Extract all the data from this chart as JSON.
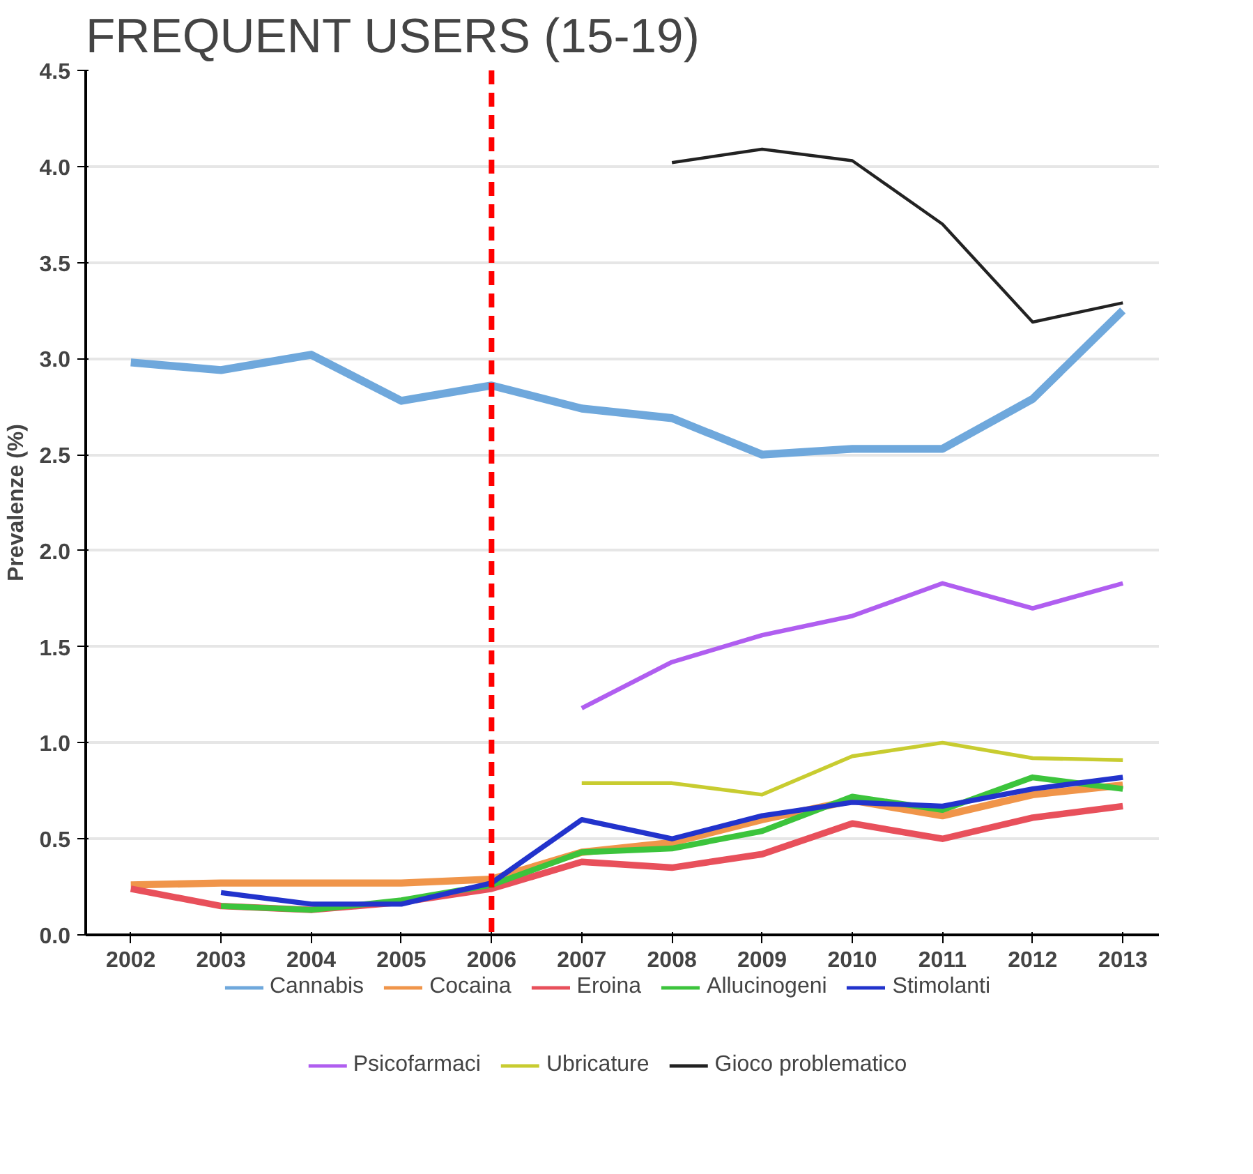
{
  "chart_data": {
    "type": "line",
    "title": "FREQUENT USERS (15-19)",
    "ylabel": "Prevalenze (%)",
    "x": [
      2002,
      2003,
      2004,
      2005,
      2006,
      2007,
      2008,
      2009,
      2010,
      2011,
      2012,
      2013
    ],
    "xlim": [
      2001.5,
      2013.4
    ],
    "xticks": [
      2002,
      2003,
      2004,
      2005,
      2006,
      2007,
      2008,
      2009,
      2010,
      2011,
      2012,
      2013
    ],
    "ylim": [
      0,
      4.5
    ],
    "yticks": [
      {
        "value": 0,
        "label": "0.0"
      },
      0.5,
      {
        "value": 1,
        "label": "1.0"
      },
      1.5,
      {
        "value": 2,
        "label": "2.0"
      },
      2.5,
      {
        "value": 3,
        "label": "3.0"
      },
      3.5,
      {
        "value": 4,
        "label": "4.0"
      },
      4.5
    ],
    "grid": "y",
    "legend": "bottom",
    "line_style": "solid",
    "ref_lines": [
      {
        "axis": "x",
        "value": 2006,
        "label": null,
        "color": "#ff0000",
        "line_style": "dashed"
      }
    ],
    "series": [
      {
        "name": "Cannabis",
        "color": "#6fa8dc",
        "values": [
          2.98,
          2.94,
          3.02,
          2.78,
          2.86,
          2.74,
          2.69,
          2.5,
          2.53,
          2.53,
          2.79,
          3.25
        ]
      },
      {
        "name": "Cocaina",
        "color": "#f0954a",
        "values": [
          0.26,
          0.27,
          0.27,
          0.27,
          0.29,
          0.43,
          0.48,
          0.6,
          0.7,
          0.62,
          0.73,
          0.78
        ]
      },
      {
        "name": "Eroina",
        "color": "#e8505b",
        "values": [
          0.24,
          0.15,
          0.13,
          0.17,
          0.24,
          0.38,
          0.35,
          0.42,
          0.58,
          0.5,
          0.61,
          0.67
        ]
      },
      {
        "name": "Allucinogeni",
        "color": "#3cc43c",
        "values": [
          null,
          0.15,
          0.13,
          0.18,
          0.26,
          0.43,
          0.45,
          0.54,
          0.72,
          0.65,
          0.82,
          0.76
        ]
      },
      {
        "name": "Stimolanti",
        "color": "#2233cc",
        "values": [
          null,
          0.22,
          0.16,
          0.16,
          0.27,
          0.6,
          0.5,
          0.62,
          0.69,
          0.67,
          0.76,
          0.82
        ]
      },
      {
        "name": "Psicofarmaci",
        "color": "#b05ef0",
        "values": [
          null,
          null,
          null,
          null,
          null,
          1.18,
          1.42,
          1.56,
          1.66,
          1.83,
          1.7,
          1.83
        ]
      },
      {
        "name": "Ubricature",
        "color": "#c8cc30",
        "values": [
          null,
          null,
          null,
          null,
          null,
          0.79,
          0.79,
          0.73,
          0.93,
          1.0,
          0.92,
          0.91
        ]
      },
      {
        "name": "Gioco problematico",
        "color": "#222222",
        "values": [
          null,
          null,
          null,
          null,
          null,
          null,
          4.02,
          4.09,
          4.03,
          3.7,
          3.19,
          3.29
        ]
      }
    ]
  }
}
